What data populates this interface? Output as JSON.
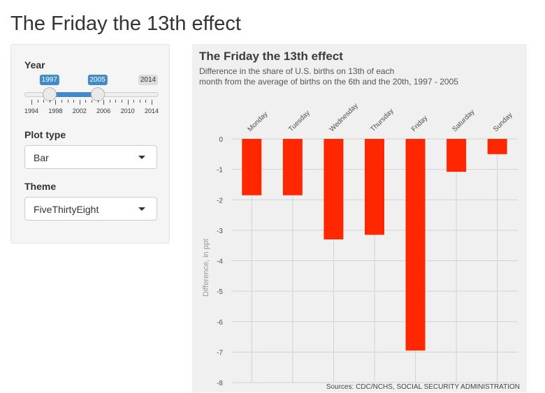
{
  "page": {
    "title": "The Friday the 13th effect"
  },
  "sidebar": {
    "year": {
      "label": "Year",
      "min": 1994,
      "max": 2014,
      "from": 1997,
      "to": 2005,
      "from_label": "1997",
      "to_label": "2005",
      "max_label": "2014",
      "tick_labels": [
        "1994",
        "1998",
        "2002",
        "2006",
        "2010",
        "2014"
      ]
    },
    "plot_type": {
      "label": "Plot type",
      "value": "Bar"
    },
    "theme": {
      "label": "Theme",
      "value": "FiveThirtyEight"
    }
  },
  "colors": {
    "bar": "#ff2700",
    "plot_bg": "#f0f0f0",
    "slider_accent": "#428bca"
  },
  "chart_data": {
    "type": "bar",
    "title": "The Friday the 13th effect",
    "subtitle": [
      "Difference in the share of U.S. births on 13th of each",
      "month from the average of births on the 6th and the 20th, 1997 - 2005"
    ],
    "ylabel": "Difference, in ppt",
    "xlabel": "",
    "caption": "Sources: CDC/NCHS, SOCIAL SECURITY ADMINISTRATION",
    "categories": [
      "Monday",
      "Tuesday",
      "Wednesday",
      "Thursday",
      "Friday",
      "Saturday",
      "Sunday"
    ],
    "values": [
      -1.85,
      -1.85,
      -3.3,
      -3.15,
      -6.95,
      -1.08,
      -0.5
    ],
    "ylim": [
      -8,
      0
    ],
    "yticks": [
      0,
      -1,
      -2,
      -3,
      -4,
      -5,
      -6,
      -7,
      -8
    ],
    "grid": true,
    "x_axis_position": "top"
  }
}
